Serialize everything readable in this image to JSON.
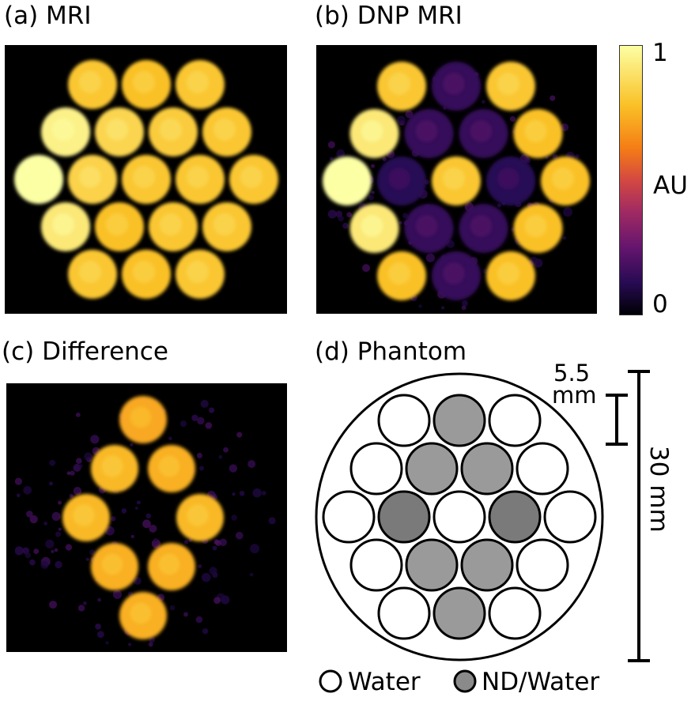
{
  "panels": {
    "a": {
      "label": "(a) MRI"
    },
    "b": {
      "label": "(b) DNP MRI"
    },
    "c": {
      "label": "(c) Difference"
    },
    "d": {
      "label": "(d) Phantom"
    }
  },
  "colorbar": {
    "max_label": "1",
    "mid_label": "AU",
    "min_label": "0",
    "colormap": "inferno"
  },
  "phantom": {
    "scale_small": {
      "line1": "5.5",
      "line2": "mm"
    },
    "scale_large": "30 mm",
    "legend": {
      "water": "Water",
      "nd_water": "ND/Water"
    },
    "colors": {
      "water": "#ffffff",
      "nd_light": "#9a9a9a",
      "nd_dark": "#7a7a7a"
    }
  },
  "wells": {
    "rows": [
      3,
      4,
      5,
      4,
      3
    ],
    "mri_intensity": [
      [
        0.8,
        0.78,
        0.8
      ],
      [
        0.95,
        0.85,
        0.82,
        0.8
      ],
      [
        1.0,
        0.84,
        0.8,
        0.8,
        0.8
      ],
      [
        0.92,
        0.78,
        0.8,
        0.8
      ],
      [
        0.8,
        0.78,
        0.8
      ]
    ],
    "dnp_intensity": [
      [
        0.8,
        0.15,
        0.8
      ],
      [
        0.92,
        0.15,
        0.15,
        0.78
      ],
      [
        1.0,
        0.12,
        0.8,
        0.12,
        0.78
      ],
      [
        0.92,
        0.15,
        0.15,
        0.78
      ],
      [
        0.78,
        0.15,
        0.78
      ]
    ],
    "diff_intensity": [
      [
        0.0,
        0.72,
        0.0
      ],
      [
        0.0,
        0.76,
        0.74,
        0.0
      ],
      [
        0.0,
        0.76,
        0.0,
        0.76,
        0.0
      ],
      [
        0.0,
        0.74,
        0.74,
        0.0
      ],
      [
        0.0,
        0.74,
        0.0
      ]
    ],
    "phantom_fill": [
      [
        "water",
        "nd_light",
        "water"
      ],
      [
        "water",
        "nd_light",
        "nd_light",
        "water"
      ],
      [
        "water",
        "nd_dark",
        "water",
        "nd_dark",
        "water"
      ],
      [
        "water",
        "nd_light",
        "nd_light",
        "water"
      ],
      [
        "water",
        "nd_light",
        "water"
      ]
    ]
  }
}
